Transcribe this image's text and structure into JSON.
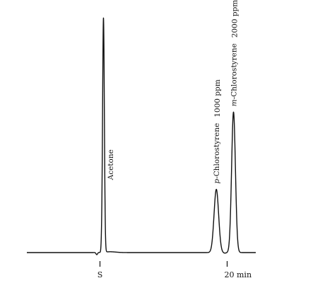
{
  "chart_data": {
    "type": "line",
    "title": "",
    "xlabel": "",
    "ylabel": "",
    "xlim": [
      -11.5,
      24.5
    ],
    "ylim": [
      0,
      100
    ],
    "grid": false,
    "legend": "none",
    "x_ticks": [
      {
        "x": 0,
        "label": "S"
      },
      {
        "x": 20,
        "label": "20 min"
      }
    ],
    "baseline": 0,
    "peaks": [
      {
        "name_prefix": "",
        "name": "Acetone",
        "concentration": "",
        "retention": 0.55,
        "height": 100,
        "width": 0.14,
        "label_offset_x": 1.2,
        "label_top": 31,
        "conc_top": 31
      },
      {
        "name_prefix": "p",
        "name": "-Chlorostyrene",
        "concentration": "1000 ppm",
        "retention": 18.3,
        "height": 27,
        "width": 0.36,
        "label_offset_x": 0,
        "label_top": 30,
        "conc_top": 30
      },
      {
        "name_prefix": "m",
        "name": "-Chlorostyrene",
        "concentration": "2000 ppm",
        "retention": 21.0,
        "height": 60,
        "width": 0.3,
        "label_offset_x": 0,
        "label_top": 64,
        "conc_top": 64
      }
    ]
  }
}
